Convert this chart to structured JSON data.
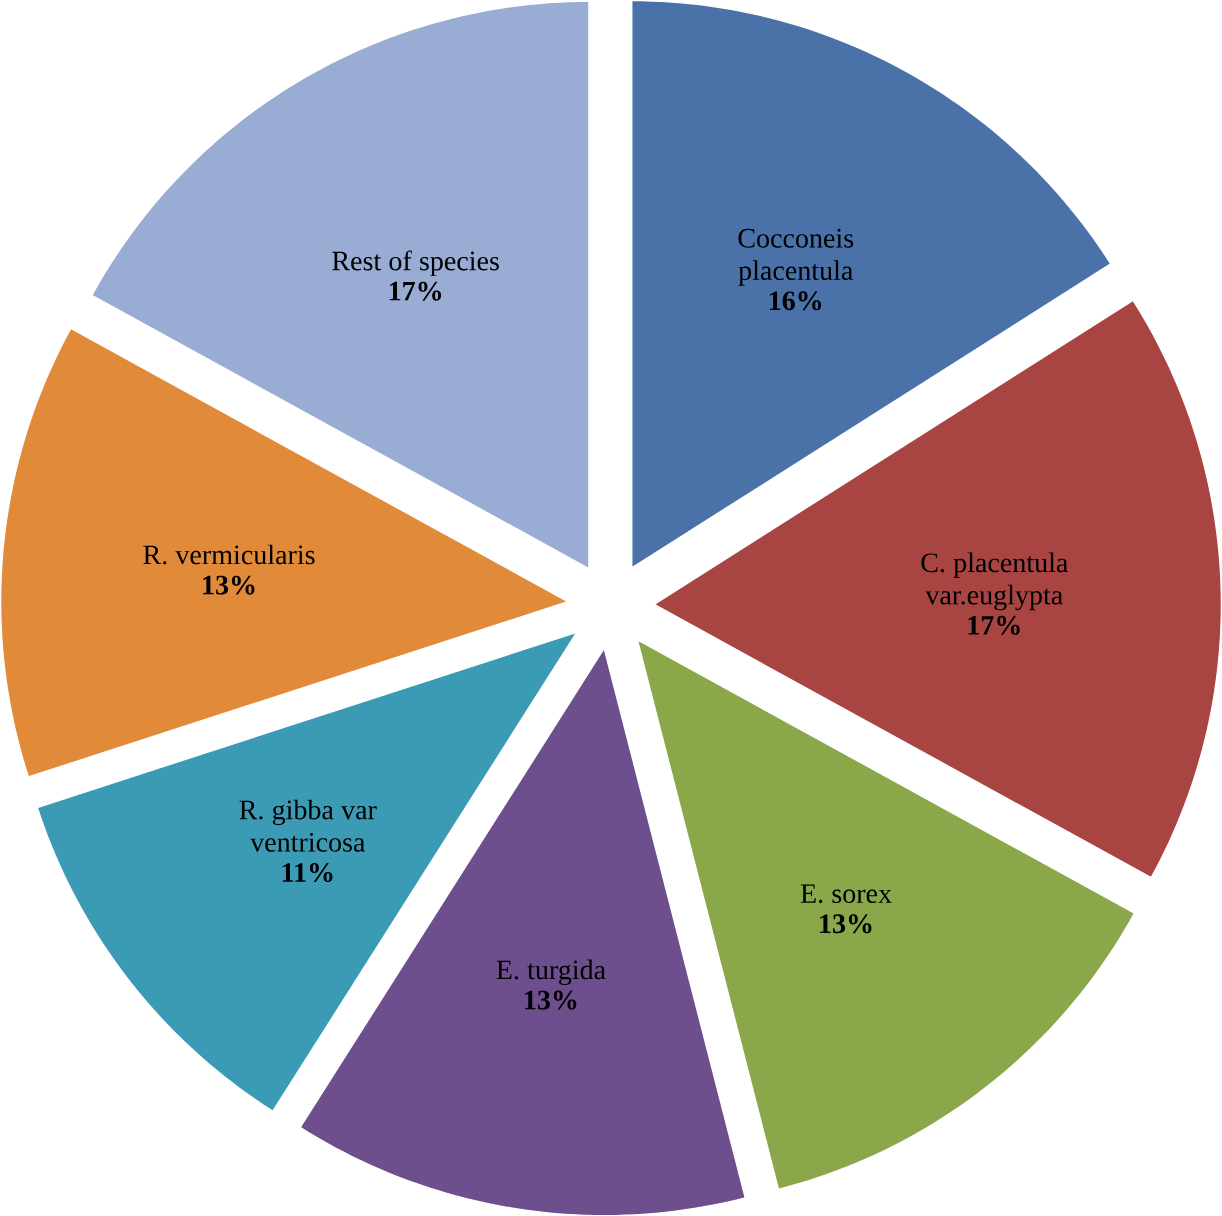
{
  "chart_data": {
    "type": "pie",
    "categories": [
      "Cocconeis placentula",
      "C. placentula var.euglypta",
      "E. sorex",
      "E. turgida",
      "R. gibba var ventricosa",
      "R. vermicularis",
      "Rest of species"
    ],
    "values": [
      16,
      17,
      13,
      13,
      11,
      13,
      17
    ],
    "value_labels": [
      "16%",
      "17%",
      "13%",
      "13%",
      "11%",
      "13%",
      "17%"
    ],
    "colors": [
      "#4a72a8",
      "#a84442",
      "#8aa84a",
      "#6e4f8e",
      "#3b9bb5",
      "#e08a3a",
      "#98acd4"
    ]
  }
}
